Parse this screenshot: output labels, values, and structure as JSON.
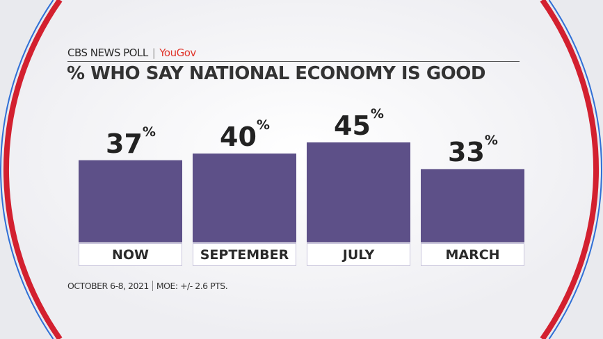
{
  "brand": {
    "network": "CBS NEWS POLL",
    "partner": "YouGov"
  },
  "footer": {
    "date": "OCTOBER 6-8, 2021",
    "moe": "MOE: +/- 2.6 PTS."
  },
  "colors": {
    "bar": "#5d5088",
    "accent_red": "#d3202f",
    "accent_blue": "#2f6fd6"
  },
  "chart_data": {
    "type": "bar",
    "title": "% WHO SAY NATIONAL ECONOMY IS GOOD",
    "categories": [
      "NOW",
      "SEPTEMBER",
      "JULY",
      "MARCH"
    ],
    "values": [
      37,
      40,
      45,
      33
    ],
    "value_labels": [
      "37",
      "40",
      "45",
      "33"
    ],
    "unit": "%",
    "ylim": [
      0,
      45
    ],
    "grid": false
  }
}
